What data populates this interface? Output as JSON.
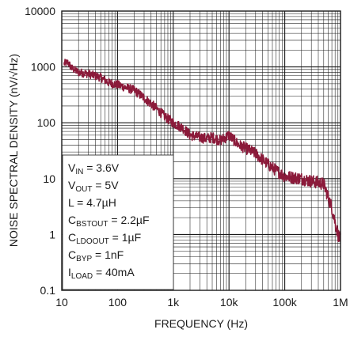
{
  "chart_data": {
    "type": "line",
    "title": "",
    "xlabel": "FREQUENCY (Hz)",
    "ylabel": "NOISE SPECTRAL DENSITY (nV/√Hz)",
    "xscale": "log",
    "yscale": "log",
    "xlim": [
      10,
      1000000
    ],
    "ylim": [
      0.1,
      10000
    ],
    "grid": true,
    "x_ticks": [
      {
        "value": 10,
        "label": "10"
      },
      {
        "value": 100,
        "label": "100"
      },
      {
        "value": 1000,
        "label": "1k"
      },
      {
        "value": 10000,
        "label": "10k"
      },
      {
        "value": 100000,
        "label": "100k"
      },
      {
        "value": 1000000,
        "label": "1M"
      }
    ],
    "y_ticks": [
      {
        "value": 0.1,
        "label": "0.1"
      },
      {
        "value": 1,
        "label": "1"
      },
      {
        "value": 10,
        "label": "10"
      },
      {
        "value": 100,
        "label": "100"
      },
      {
        "value": 1000,
        "label": "1000"
      },
      {
        "value": 10000,
        "label": "10000"
      }
    ],
    "series": [
      {
        "color": "#8b1a3a",
        "x": [
          11,
          13,
          15,
          20,
          30,
          50,
          70,
          100,
          150,
          200,
          300,
          500,
          700,
          1000,
          1500,
          2000,
          3000,
          4000,
          5000,
          7000,
          10000,
          15000,
          20000,
          30000,
          50000,
          70000,
          100000,
          200000,
          300000,
          400000,
          500000,
          700000,
          900000,
          1000000
        ],
        "y": [
          1150,
          1200,
          950,
          800,
          750,
          650,
          520,
          480,
          420,
          380,
          280,
          180,
          130,
          100,
          80,
          60,
          55,
          52,
          55,
          48,
          60,
          40,
          35,
          28,
          18,
          14,
          11,
          10,
          9,
          8.5,
          8,
          3,
          1,
          0.8
        ]
      }
    ],
    "legend_box": {
      "position": "bottom-left",
      "lines": [
        {
          "main": "V",
          "sub": "IN",
          "rest": " = 3.6V"
        },
        {
          "main": "V",
          "sub": "OUT",
          "rest": " = 5V"
        },
        {
          "main": "L = 4.7µH",
          "sub": "",
          "rest": ""
        },
        {
          "main": "C",
          "sub": "BSTOUT",
          "rest": " = 2.2µF"
        },
        {
          "main": "C",
          "sub": "LDOOUT",
          "rest": " = 1µF"
        },
        {
          "main": "C",
          "sub": "BYP",
          "rest": " = 1nF"
        },
        {
          "main": "I",
          "sub": "LOAD",
          "rest": " = 40mA"
        }
      ]
    }
  }
}
